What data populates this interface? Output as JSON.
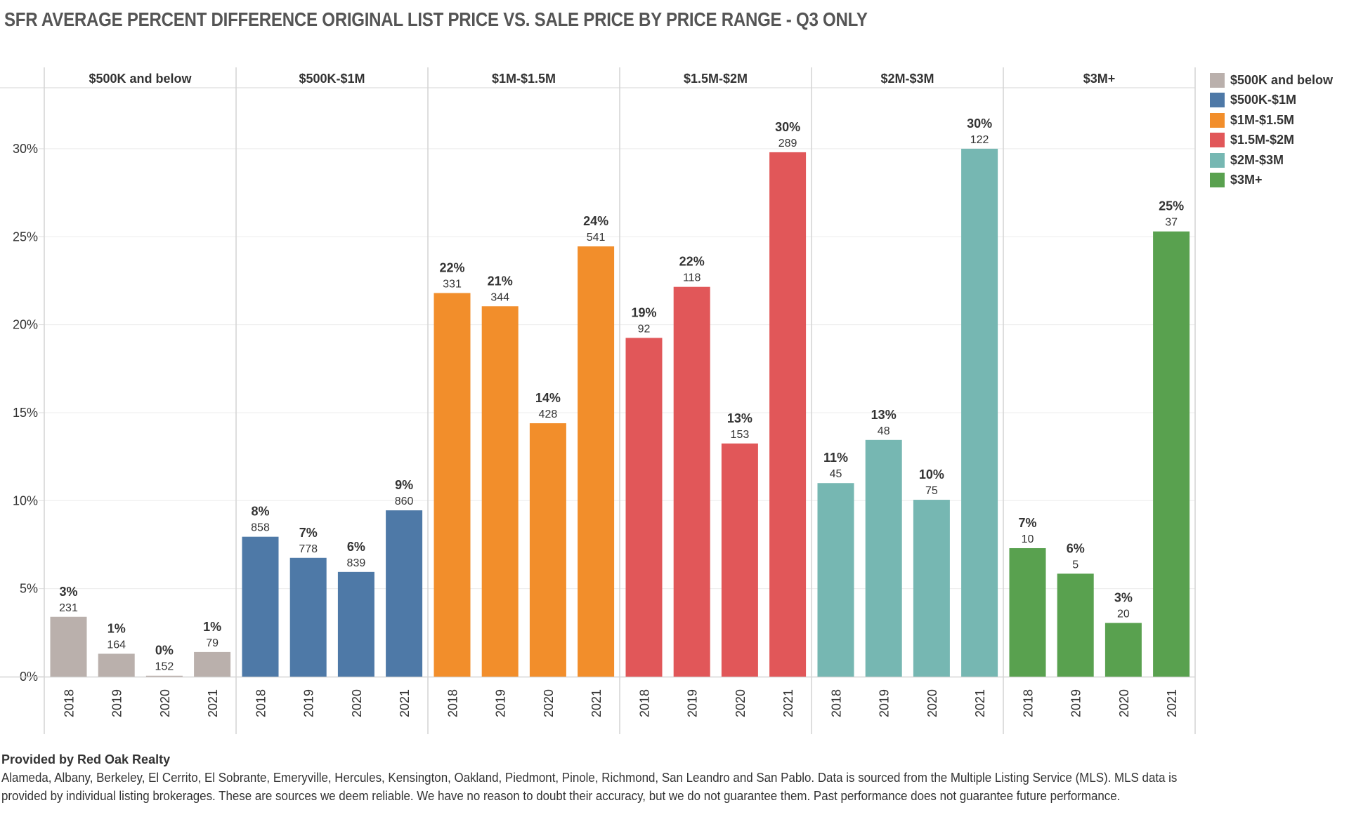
{
  "title": "SFR AVERAGE PERCENT DIFFERENCE ORIGINAL LIST PRICE VS. SALE PRICE BY PRICE RANGE - Q3 ONLY",
  "legend": {
    "items": [
      {
        "label": "$500K and below",
        "color": "#BAB0AC"
      },
      {
        "label": "$500K-$1M",
        "color": "#4E79A7"
      },
      {
        "label": "$1M-$1.5M",
        "color": "#F28E2B"
      },
      {
        "label": "$1.5M-$2M",
        "color": "#E15759"
      },
      {
        "label": "$2M-$3M",
        "color": "#76B7B2"
      },
      {
        "label": "$3M+",
        "color": "#59A14F"
      }
    ]
  },
  "footer": {
    "heading": "Provided by Red Oak Realty",
    "body": "Alameda, Albany, Berkeley, El Cerrito, El Sobrante, Emeryville, Hercules, Kensington, Oakland, Piedmont, Pinole, Richmond, San Leandro and San Pablo. Data is sourced from the Multiple Listing Service (MLS). MLS data is provided by individual listing brokerages. These are sources we deem reliable. We have no reason to doubt their accuracy, but we do not guarantee them. Past performance does not guarantee future performance."
  },
  "chart_data": {
    "type": "bar",
    "title": "SFR AVERAGE PERCENT DIFFERENCE ORIGINAL LIST PRICE VS. SALE PRICE BY PRICE RANGE - Q3 ONLY",
    "xlabel": "",
    "ylabel": "",
    "ylim": [
      0,
      33.5
    ],
    "yticks": [
      0,
      5,
      10,
      15,
      20,
      25,
      30
    ],
    "ytick_labels": [
      "0%",
      "5%",
      "10%",
      "15%",
      "20%",
      "25%",
      "30%"
    ],
    "grid": true,
    "legend_position": "right",
    "categories": [
      "2018",
      "2019",
      "2020",
      "2021"
    ],
    "panels": [
      {
        "name": "$500K and below",
        "color": "#BAB0AC",
        "values": [
          3.4,
          1.3,
          0.05,
          1.4
        ],
        "value_labels": [
          "3%",
          "1%",
          "0%",
          "1%"
        ],
        "counts": [
          "231",
          "164",
          "152",
          "79"
        ]
      },
      {
        "name": "$500K-$1M",
        "color": "#4E79A7",
        "values": [
          7.95,
          6.75,
          5.95,
          9.45
        ],
        "value_labels": [
          "8%",
          "7%",
          "6%",
          "9%"
        ],
        "counts": [
          "858",
          "778",
          "839",
          "860"
        ]
      },
      {
        "name": "$1M-$1.5M",
        "color": "#F28E2B",
        "values": [
          21.8,
          21.05,
          14.4,
          24.45
        ],
        "value_labels": [
          "22%",
          "21%",
          "14%",
          "24%"
        ],
        "counts": [
          "331",
          "344",
          "428",
          "541"
        ]
      },
      {
        "name": "$1.5M-$2M",
        "color": "#E15759",
        "values": [
          19.25,
          22.15,
          13.25,
          29.8
        ],
        "value_labels": [
          "19%",
          "22%",
          "13%",
          "30%"
        ],
        "counts": [
          "92",
          "118",
          "153",
          "289"
        ]
      },
      {
        "name": "$2M-$3M",
        "color": "#76B7B2",
        "values": [
          11.0,
          13.45,
          10.05,
          30.0
        ],
        "value_labels": [
          "11%",
          "13%",
          "10%",
          "30%"
        ],
        "counts": [
          "45",
          "48",
          "75",
          "122"
        ]
      },
      {
        "name": "$3M+",
        "color": "#59A14F",
        "values": [
          7.3,
          5.85,
          3.05,
          25.3
        ],
        "value_labels": [
          "7%",
          "6%",
          "3%",
          "25%"
        ],
        "counts": [
          "10",
          "5",
          "20",
          "37"
        ]
      }
    ]
  }
}
